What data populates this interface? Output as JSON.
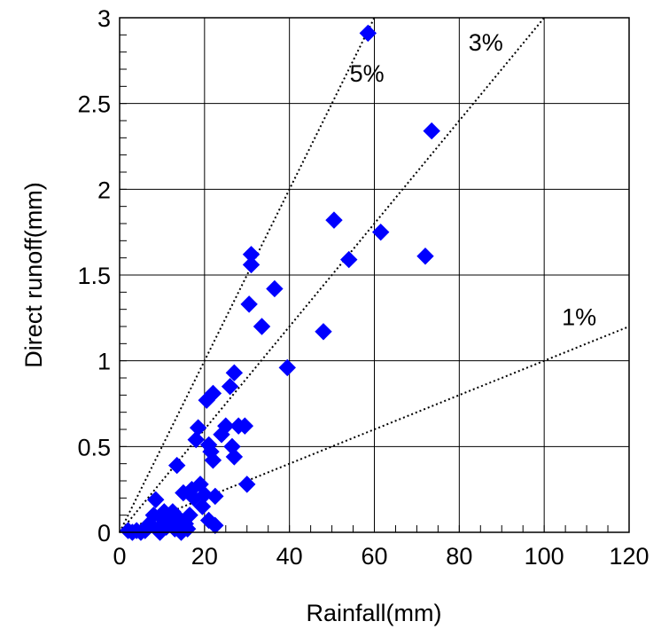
{
  "chart_data": {
    "type": "scatter",
    "title": "",
    "xlabel": "Rainfall(mm)",
    "ylabel": "Direct runoff(mm)",
    "xlim": [
      0,
      120
    ],
    "ylim": [
      0,
      3
    ],
    "x_ticks": [
      0,
      20,
      40,
      60,
      80,
      100,
      120
    ],
    "y_ticks": [
      0,
      0.5,
      1,
      1.5,
      2,
      2.5,
      3
    ],
    "x_tick_labels": [
      "0",
      "20",
      "40",
      "60",
      "80",
      "100",
      "120"
    ],
    "y_tick_labels": [
      "0",
      "0.5",
      "1",
      "1.5",
      "2",
      "2.5",
      "3"
    ],
    "grid": true,
    "marker": "diamond",
    "marker_color": "#0000ff",
    "points": [
      [
        2,
        0.01
      ],
      [
        3,
        0.0
      ],
      [
        4,
        0.01
      ],
      [
        5,
        0.0
      ],
      [
        6,
        0.01
      ],
      [
        7,
        0.05
      ],
      [
        8,
        0.1
      ],
      [
        8.5,
        0.19
      ],
      [
        9,
        0.02
      ],
      [
        9.5,
        0.0
      ],
      [
        10,
        0.08
      ],
      [
        10.5,
        0.12
      ],
      [
        11,
        0.03
      ],
      [
        12,
        0.07
      ],
      [
        12.5,
        0.12
      ],
      [
        13,
        0.02
      ],
      [
        13.5,
        0.39
      ],
      [
        14,
        0.08
      ],
      [
        14.5,
        0.0
      ],
      [
        15,
        0.23
      ],
      [
        15.5,
        0.05
      ],
      [
        16,
        0.02
      ],
      [
        16.5,
        0.1
      ],
      [
        17,
        0.25
      ],
      [
        17.5,
        0.2
      ],
      [
        18,
        0.54
      ],
      [
        18.5,
        0.61
      ],
      [
        19,
        0.28
      ],
      [
        19.5,
        0.15
      ],
      [
        20,
        0.22
      ],
      [
        20.5,
        0.77
      ],
      [
        21,
        0.51
      ],
      [
        21,
        0.07
      ],
      [
        21.5,
        0.47
      ],
      [
        22,
        0.42
      ],
      [
        22,
        0.81
      ],
      [
        22.5,
        0.04
      ],
      [
        22.5,
        0.21
      ],
      [
        24,
        0.57
      ],
      [
        25,
        0.62
      ],
      [
        26,
        0.85
      ],
      [
        26.5,
        0.5
      ],
      [
        27,
        0.93
      ],
      [
        27,
        0.44
      ],
      [
        28,
        0.62
      ],
      [
        29.5,
        0.62
      ],
      [
        30,
        0.28
      ],
      [
        30.5,
        1.33
      ],
      [
        31,
        1.56
      ],
      [
        31,
        1.62
      ],
      [
        33.5,
        1.2
      ],
      [
        36.5,
        1.42
      ],
      [
        39.5,
        0.96
      ],
      [
        48,
        1.17
      ],
      [
        50.5,
        1.82
      ],
      [
        54,
        1.59
      ],
      [
        58.5,
        2.91
      ],
      [
        61.5,
        1.75
      ],
      [
        72,
        1.61
      ],
      [
        73.5,
        2.34
      ]
    ],
    "reference_lines": [
      {
        "label": "5%",
        "slope": 0.05
      },
      {
        "label": "3%",
        "slope": 0.03
      },
      {
        "label": "1%",
        "slope": 0.01
      }
    ]
  }
}
